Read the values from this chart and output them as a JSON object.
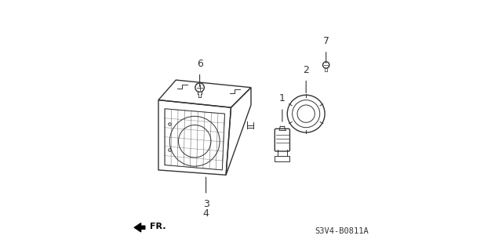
{
  "bg_color": "#ffffff",
  "line_color": "#333333",
  "diagram_code": "S3V4-B0811A",
  "fr_label": "FR.",
  "label_fontsize": 9
}
